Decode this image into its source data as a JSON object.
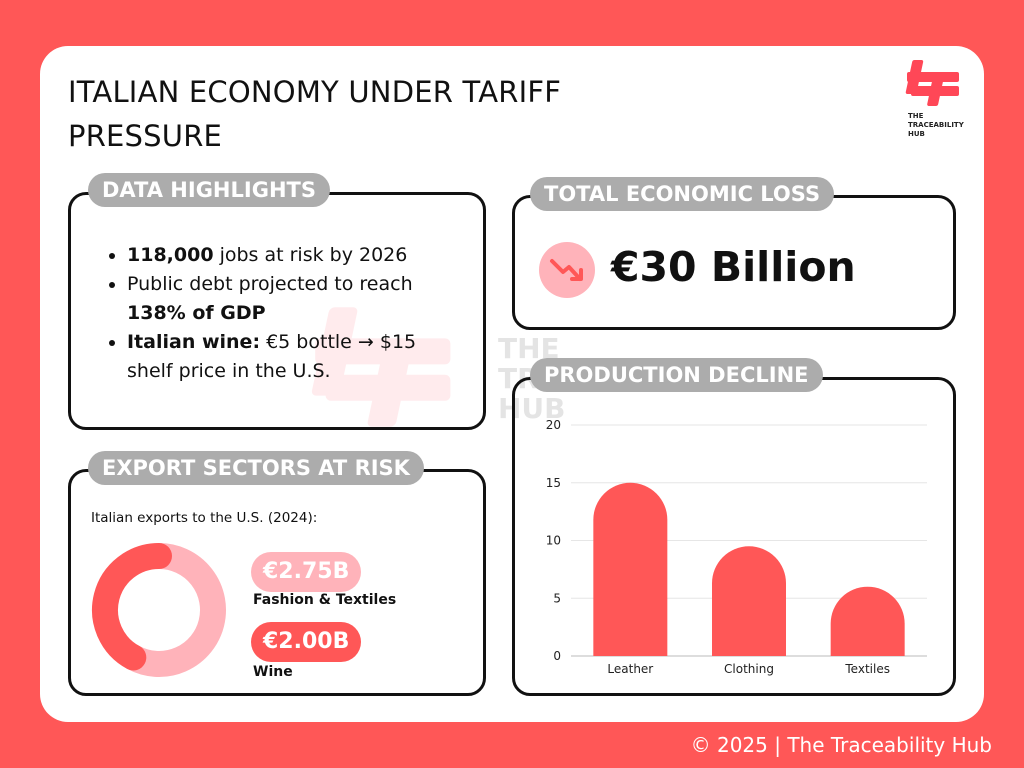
{
  "title": "ITALIAN ECONOMY UNDER TARIFF PRESSURE",
  "logo": {
    "text_line1": "THE",
    "text_line2": "TRACEABILITY",
    "text_line3": "HUB"
  },
  "watermark": {
    "line1": "THE",
    "line2": "TRACEABILITY",
    "line3": "HUB"
  },
  "highlights": {
    "heading": "DATA HIGHLIGHTS",
    "item1_bold": "118,000",
    "item1_rest": " jobs at risk by 2026",
    "item2_text": "Public debt projected to reach ",
    "item2_bold": "138% of GDP",
    "item3_bold": "Italian wine:",
    "item3_rest": " €5 bottle → $15 shelf price in the U.S."
  },
  "loss": {
    "heading": "TOTAL ECONOMIC LOSS",
    "value": "€30 Billion",
    "icon": "trending-down-icon"
  },
  "exports": {
    "heading": "EXPORT SECTORS AT RISK",
    "subtitle": "Italian exports to the U.S. (2024):",
    "sectors": [
      {
        "value": "€2.75B",
        "name": "Fashion & Textiles",
        "amount": 2.75,
        "color": "#FFB3BA"
      },
      {
        "value": "€2.00B",
        "name": "Wine",
        "amount": 2.0,
        "color": "#FF5757"
      }
    ]
  },
  "production": {
    "heading": "PRODUCTION DECLINE"
  },
  "chart_data": {
    "type": "bar",
    "categories": [
      "Leather",
      "Clothing",
      "Textiles"
    ],
    "values": [
      15,
      9.5,
      6
    ],
    "ylim": [
      0,
      20
    ],
    "yticks": [
      "0",
      "5",
      "10",
      "15",
      "20"
    ],
    "bar_color": "#FF5757",
    "grid": true
  },
  "colors": {
    "accent": "#FF5757",
    "pink": "#FFB3BA",
    "pill": "#ACACAC"
  },
  "footer": "© 2025 | The Traceability Hub"
}
